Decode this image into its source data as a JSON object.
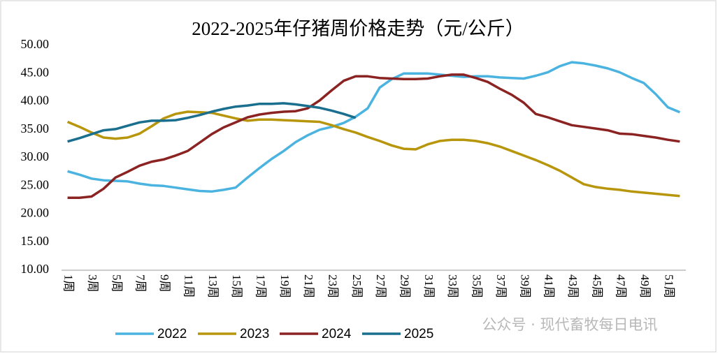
{
  "chart_data": {
    "type": "line",
    "title": "2022-2025年仔猪周价格走势（元/公斤）",
    "categories": [
      "1周",
      null,
      "3周",
      null,
      "5周",
      null,
      "7周",
      null,
      "9周",
      null,
      "11周",
      null,
      "13周",
      null,
      "15周",
      null,
      "17周",
      null,
      "19周",
      null,
      "21周",
      null,
      "23周",
      null,
      "25周",
      null,
      "27周",
      null,
      "29周",
      null,
      "31周",
      null,
      "33周",
      null,
      "35周",
      null,
      "37周",
      null,
      "39周",
      null,
      "41周",
      null,
      "43周",
      null,
      "45周",
      null,
      "47周",
      null,
      "49周",
      null,
      "51周",
      null
    ],
    "series": [
      {
        "name": "2022",
        "color": "#4bb3e0",
        "values": [
          27.6,
          27,
          26.3,
          26,
          25.9,
          25.8,
          25.4,
          25.1,
          25,
          24.7,
          24.4,
          24.1,
          24,
          24.3,
          24.7,
          26.5,
          28.2,
          29.8,
          31.2,
          32.8,
          34,
          35,
          35.5,
          36.2,
          37.3,
          38.8,
          42.5,
          44,
          45,
          45,
          45,
          44.8,
          44.6,
          44.4,
          44.5,
          44.5,
          44.3,
          44.2,
          44.1,
          44.6,
          45.2,
          46.3,
          47,
          46.8,
          46.4,
          45.9,
          45.2,
          44.2,
          43.3,
          41.3,
          39,
          38.1
        ]
      },
      {
        "name": "2023",
        "color": "#b8960c",
        "values": [
          36.4,
          35.5,
          34.5,
          33.6,
          33.4,
          33.6,
          34.3,
          35.6,
          37,
          37.8,
          38.2,
          38.1,
          38,
          37.5,
          37,
          36.6,
          36.8,
          36.8,
          36.7,
          36.6,
          36.5,
          36.4,
          35.8,
          35.1,
          34.5,
          33.7,
          33,
          32.2,
          31.6,
          31.5,
          32.4,
          33,
          33.2,
          33.2,
          33,
          32.6,
          32,
          31.2,
          30.4,
          29.6,
          28.7,
          27.7,
          26.5,
          25.3,
          24.8,
          24.5,
          24.3,
          24,
          23.8,
          23.6,
          23.4,
          23.2
        ]
      },
      {
        "name": "2024",
        "color": "#8b2323",
        "values": [
          22.9,
          22.9,
          23.1,
          24.5,
          26.5,
          27.5,
          28.6,
          29.3,
          29.7,
          30.4,
          31.2,
          32.7,
          34.2,
          35.4,
          36.3,
          37.2,
          37.7,
          38,
          38.2,
          38.3,
          38.8,
          40.2,
          42,
          43.7,
          44.5,
          44.5,
          44.2,
          44.1,
          44,
          44,
          44.1,
          44.5,
          44.8,
          44.8,
          44.2,
          43.5,
          42.3,
          41.2,
          39.8,
          37.8,
          37.2,
          36.5,
          35.8,
          35.5,
          35.2,
          34.9,
          34.3,
          34.2,
          33.9,
          33.6,
          33.2,
          32.9
        ]
      },
      {
        "name": "2025",
        "color": "#1a6e8e",
        "values": [
          32.9,
          33.5,
          34.2,
          34.9,
          35.1,
          35.7,
          36.3,
          36.6,
          36.6,
          36.7,
          37.1,
          37.6,
          38.2,
          38.7,
          39.1,
          39.3,
          39.6,
          39.6,
          39.7,
          39.5,
          39.2,
          38.9,
          38.4,
          37.8,
          37.1,
          null,
          null,
          null,
          null,
          null,
          null,
          null,
          null,
          null,
          null,
          null,
          null,
          null,
          null,
          null,
          null,
          null,
          null,
          null,
          null,
          null,
          null,
          null,
          null,
          null,
          null,
          null
        ]
      }
    ],
    "ylim": [
      10,
      50
    ],
    "yticks": [
      {
        "value": 10,
        "label": "10.00"
      },
      {
        "value": 15,
        "label": "15.00"
      },
      {
        "value": 20,
        "label": "20.00"
      },
      {
        "value": 25,
        "label": "25.00"
      },
      {
        "value": 30,
        "label": "30.00"
      },
      {
        "value": 35,
        "label": "35.00"
      },
      {
        "value": 40,
        "label": "40.00"
      },
      {
        "value": 45,
        "label": "45.00"
      },
      {
        "value": 50,
        "label": "50.00"
      }
    ],
    "grid": false,
    "legend": "bottom",
    "watermark": "公众号 · 现代畜牧每日电讯"
  }
}
